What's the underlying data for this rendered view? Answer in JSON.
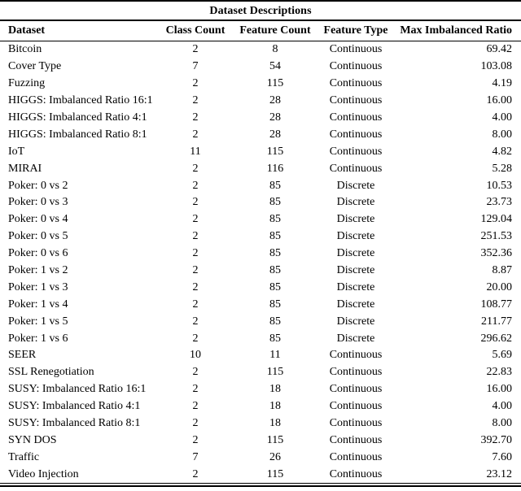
{
  "title": "Dataset Descriptions",
  "columns": [
    "Dataset",
    "Class Count",
    "Feature Count",
    "Feature Type",
    "Max Imbalanced Ratio"
  ],
  "rows": [
    [
      "Bitcoin",
      "2",
      "8",
      "Continuous",
      "69.42"
    ],
    [
      "Cover Type",
      "7",
      "54",
      "Continuous",
      "103.08"
    ],
    [
      "Fuzzing",
      "2",
      "115",
      "Continuous",
      "4.19"
    ],
    [
      "HIGGS: Imbalanced Ratio 16:1",
      "2",
      "28",
      "Continuous",
      "16.00"
    ],
    [
      "HIGGS: Imbalanced Ratio 4:1",
      "2",
      "28",
      "Continuous",
      "4.00"
    ],
    [
      "HIGGS: Imbalanced Ratio 8:1",
      "2",
      "28",
      "Continuous",
      "8.00"
    ],
    [
      "IoT",
      "11",
      "115",
      "Continuous",
      "4.82"
    ],
    [
      "MIRAI",
      "2",
      "116",
      "Continuous",
      "5.28"
    ],
    [
      "Poker: 0 vs 2",
      "2",
      "85",
      "Discrete",
      "10.53"
    ],
    [
      "Poker: 0 vs 3",
      "2",
      "85",
      "Discrete",
      "23.73"
    ],
    [
      "Poker: 0 vs 4",
      "2",
      "85",
      "Discrete",
      "129.04"
    ],
    [
      "Poker: 0 vs 5",
      "2",
      "85",
      "Discrete",
      "251.53"
    ],
    [
      "Poker: 0 vs 6",
      "2",
      "85",
      "Discrete",
      "352.36"
    ],
    [
      "Poker: 1 vs 2",
      "2",
      "85",
      "Discrete",
      "8.87"
    ],
    [
      "Poker: 1 vs 3",
      "2",
      "85",
      "Discrete",
      "20.00"
    ],
    [
      "Poker: 1 vs 4",
      "2",
      "85",
      "Discrete",
      "108.77"
    ],
    [
      "Poker: 1 vs 5",
      "2",
      "85",
      "Discrete",
      "211.77"
    ],
    [
      "Poker: 1 vs 6",
      "2",
      "85",
      "Discrete",
      "296.62"
    ],
    [
      "SEER",
      "10",
      "11",
      "Continuous",
      "5.69"
    ],
    [
      "SSL Renegotiation",
      "2",
      "115",
      "Continuous",
      "22.83"
    ],
    [
      "SUSY: Imbalanced Ratio 16:1",
      "2",
      "18",
      "Continuous",
      "16.00"
    ],
    [
      "SUSY: Imbalanced Ratio 4:1",
      "2",
      "18",
      "Continuous",
      "4.00"
    ],
    [
      "SUSY: Imbalanced Ratio 8:1",
      "2",
      "18",
      "Continuous",
      "8.00"
    ],
    [
      "SYN DOS",
      "2",
      "115",
      "Continuous",
      "392.70"
    ],
    [
      "Traffic",
      "7",
      "26",
      "Continuous",
      "7.60"
    ],
    [
      "Video Injection",
      "2",
      "115",
      "Continuous",
      "23.12"
    ]
  ],
  "colors": {
    "text": "#000000",
    "background": "#ffffff",
    "rule": "#000000"
  }
}
